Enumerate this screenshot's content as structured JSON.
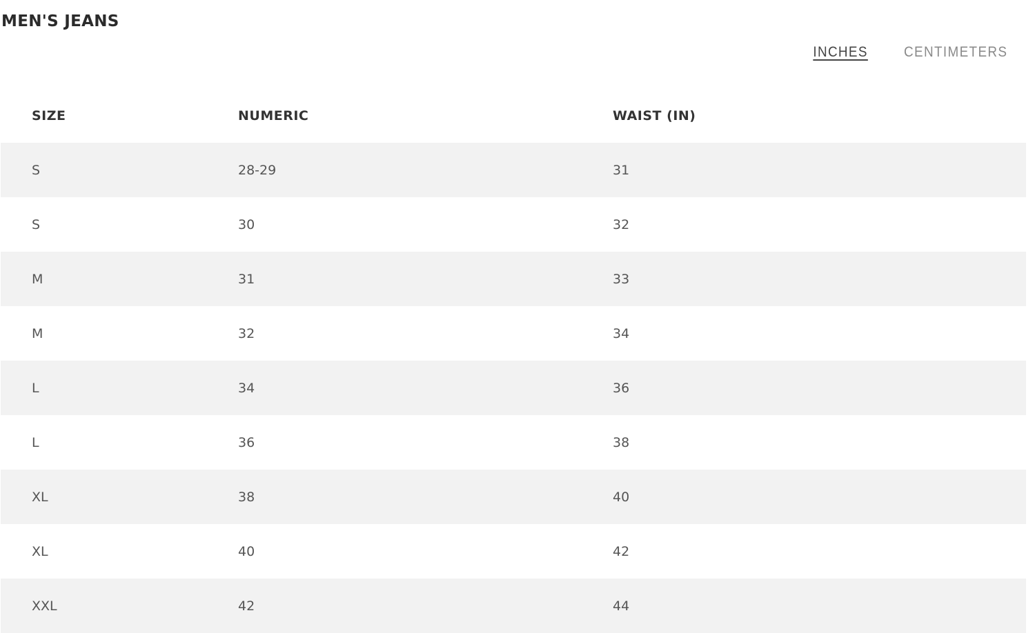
{
  "title": "MEN'S JEANS",
  "units": {
    "inches": "INCHES",
    "centimeters": "CENTIMETERS",
    "active": "inches"
  },
  "table": {
    "headers": [
      "SIZE",
      "NUMERIC",
      "WAIST (IN)"
    ],
    "rows": [
      [
        "S",
        "28-29",
        "31"
      ],
      [
        "S",
        "30",
        "32"
      ],
      [
        "M",
        "31",
        "33"
      ],
      [
        "M",
        "32",
        "34"
      ],
      [
        "L",
        "34",
        "36"
      ],
      [
        "L",
        "36",
        "38"
      ],
      [
        "XL",
        "38",
        "40"
      ],
      [
        "XL",
        "40",
        "42"
      ],
      [
        "XXL",
        "42",
        "44"
      ]
    ]
  }
}
